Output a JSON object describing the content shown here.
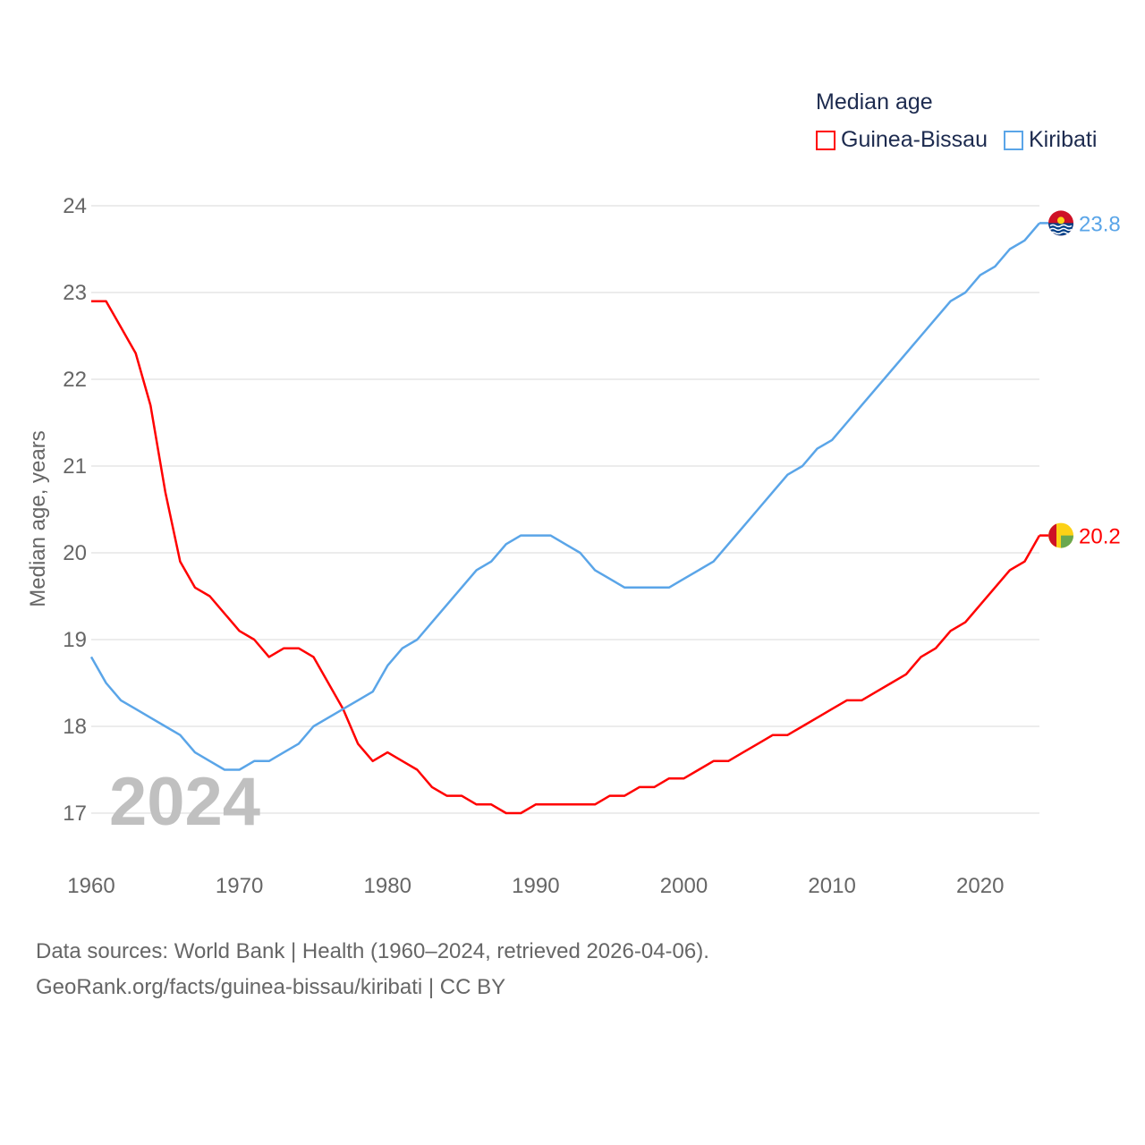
{
  "chart_data": {
    "type": "line",
    "title": "Median age",
    "ylabel": "Median age, years",
    "xlabel": "",
    "xlim": [
      1960,
      2024
    ],
    "ylim": [
      17,
      24
    ],
    "xticks": [
      1960,
      1970,
      1980,
      1990,
      2000,
      2010,
      2020
    ],
    "yticks": [
      17,
      18,
      19,
      20,
      21,
      22,
      23,
      24
    ],
    "grid": true,
    "legend_placement": "top-right",
    "year_watermark": "2024",
    "x": [
      1960,
      1961,
      1962,
      1963,
      1964,
      1965,
      1966,
      1967,
      1968,
      1969,
      1970,
      1971,
      1972,
      1973,
      1974,
      1975,
      1976,
      1977,
      1978,
      1979,
      1980,
      1981,
      1982,
      1983,
      1984,
      1985,
      1986,
      1987,
      1988,
      1989,
      1990,
      1991,
      1992,
      1993,
      1994,
      1995,
      1996,
      1997,
      1998,
      1999,
      2000,
      2001,
      2002,
      2003,
      2004,
      2005,
      2006,
      2007,
      2008,
      2009,
      2010,
      2011,
      2012,
      2013,
      2014,
      2015,
      2016,
      2017,
      2018,
      2019,
      2020,
      2021,
      2022,
      2023,
      2024
    ],
    "series": [
      {
        "name": "Guinea-Bissau",
        "color": "#ff0000",
        "end_label": "20.2",
        "values": [
          22.9,
          22.9,
          22.6,
          22.3,
          21.7,
          20.7,
          19.9,
          19.6,
          19.5,
          19.3,
          19.1,
          19.0,
          18.8,
          18.9,
          18.9,
          18.8,
          18.5,
          18.2,
          17.8,
          17.6,
          17.7,
          17.6,
          17.5,
          17.3,
          17.2,
          17.2,
          17.1,
          17.1,
          17.0,
          17.0,
          17.1,
          17.1,
          17.1,
          17.1,
          17.1,
          17.2,
          17.2,
          17.3,
          17.3,
          17.4,
          17.4,
          17.5,
          17.6,
          17.6,
          17.7,
          17.8,
          17.9,
          17.9,
          18.0,
          18.1,
          18.2,
          18.3,
          18.3,
          18.4,
          18.5,
          18.6,
          18.8,
          18.9,
          19.1,
          19.2,
          19.4,
          19.6,
          19.8,
          19.9,
          20.2
        ]
      },
      {
        "name": "Kiribati",
        "color": "#5aa5e8",
        "end_label": "23.8",
        "values": [
          18.8,
          18.5,
          18.3,
          18.2,
          18.1,
          18.0,
          17.9,
          17.7,
          17.6,
          17.5,
          17.5,
          17.6,
          17.6,
          17.7,
          17.8,
          18.0,
          18.1,
          18.2,
          18.3,
          18.4,
          18.7,
          18.9,
          19.0,
          19.2,
          19.4,
          19.6,
          19.8,
          19.9,
          20.1,
          20.2,
          20.2,
          20.2,
          20.1,
          20.0,
          19.8,
          19.7,
          19.6,
          19.6,
          19.6,
          19.6,
          19.7,
          19.8,
          19.9,
          20.1,
          20.3,
          20.5,
          20.7,
          20.9,
          21.0,
          21.2,
          21.3,
          21.5,
          21.7,
          21.9,
          22.1,
          22.3,
          22.5,
          22.7,
          22.9,
          23.0,
          23.2,
          23.3,
          23.5,
          23.6,
          23.8
        ]
      }
    ]
  },
  "footer": {
    "line1": "Data sources: World Bank | Health (1960–2024, retrieved 2026-04-06).",
    "line2": "GeoRank.org/facts/guinea-bissau/kiribati | CC BY"
  }
}
